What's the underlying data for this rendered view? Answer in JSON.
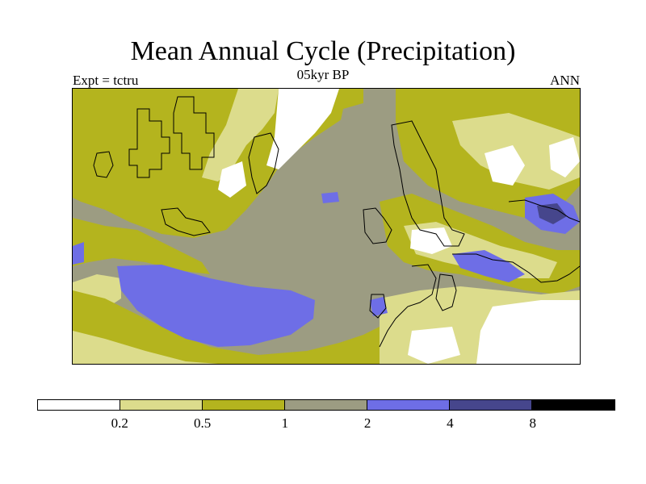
{
  "title": "Mean Annual Cycle (Precipitation)",
  "subtitle": "05kyr BP",
  "left_label": "Expt = tctru",
  "right_label": "ANN",
  "colorbar": {
    "colors": [
      "#ffffff",
      "#dcdc8c",
      "#b4b41e",
      "#9c9c82",
      "#6e6ee6",
      "#46468c",
      "#000000"
    ],
    "levels": [
      "0.2",
      "0.5",
      "1",
      "2",
      "4",
      "8"
    ]
  },
  "legend": {
    "colors": {
      "white": "#ffffff",
      "light": "#dcdc8c",
      "olive": "#b4b41e",
      "gray": "#9c9c82",
      "blue": "#6e6ee6",
      "navy": "#46468c"
    }
  }
}
